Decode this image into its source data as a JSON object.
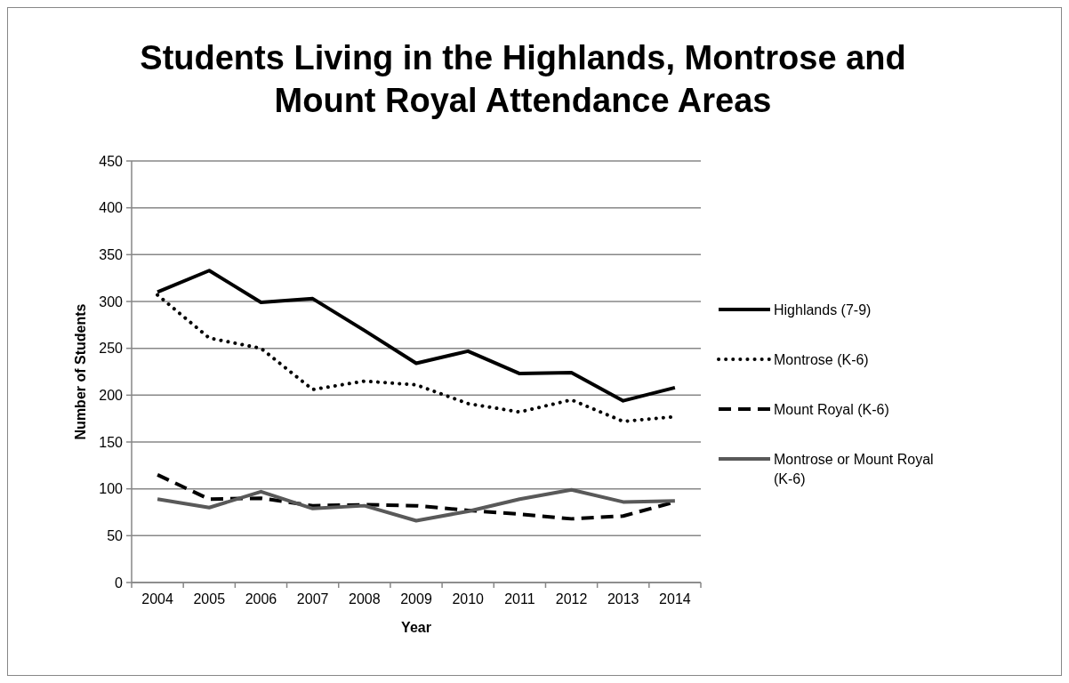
{
  "chart_data": {
    "type": "line",
    "title": "Students Living in the Highlands, Montrose and Mount Royal Attendance Areas",
    "xlabel": "Year",
    "ylabel": "Number of Students",
    "categories": [
      "2004",
      "2005",
      "2006",
      "2007",
      "2008",
      "2009",
      "2010",
      "2011",
      "2012",
      "2013",
      "2014"
    ],
    "series": [
      {
        "name": "Highlands (7-9)",
        "color": "#000000",
        "line_style": "solid",
        "values": [
          310,
          333,
          299,
          303,
          269,
          234,
          247,
          223,
          224,
          194,
          208
        ]
      },
      {
        "name": "Montrose (K-6)",
        "color": "#000000",
        "line_style": "dotted",
        "values": [
          307,
          261,
          250,
          206,
          215,
          211,
          191,
          182,
          195,
          172,
          177
        ]
      },
      {
        "name": "Mount Royal (K-6)",
        "color": "#000000",
        "line_style": "dashed",
        "values": [
          115,
          89,
          90,
          82,
          83,
          82,
          77,
          73,
          68,
          71,
          86
        ]
      },
      {
        "name": "Montrose or Mount Royal (K-6)",
        "color": "#595959",
        "line_style": "solid",
        "values": [
          89,
          80,
          97,
          79,
          82,
          66,
          76,
          89,
          99,
          86,
          87
        ]
      }
    ],
    "ylim": [
      0,
      450
    ],
    "yticks": [
      0,
      50,
      100,
      150,
      200,
      250,
      300,
      350,
      400,
      450
    ],
    "grid": "y",
    "legend": "right",
    "marker": "none"
  }
}
